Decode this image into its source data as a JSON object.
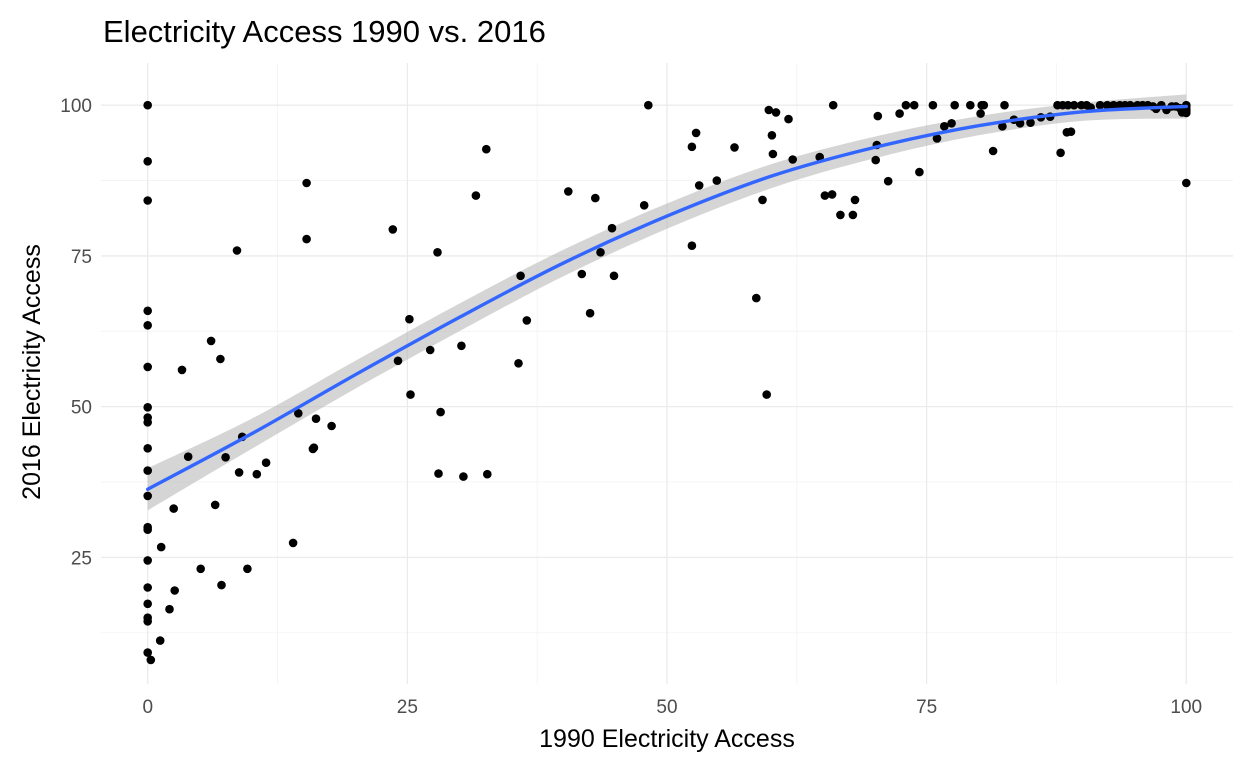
{
  "chart_data": {
    "type": "scatter",
    "title": "Electricity Access 1990 vs. 2016",
    "xlabel": "1990 Electricity Access",
    "ylabel": "2016 Electricity Access",
    "xlim": [
      -4.5,
      104.5
    ],
    "ylim": [
      4,
      107
    ],
    "x_ticks": [
      0,
      25,
      50,
      75,
      100
    ],
    "y_ticks": [
      25,
      50,
      75,
      100
    ],
    "grid": true,
    "legend": "none",
    "colors": {
      "points": "#000000",
      "trend": "#3366ff",
      "band": "#b3b3b3"
    },
    "points": [
      [
        0,
        100
      ],
      [
        0,
        90.7
      ],
      [
        0,
        84.2
      ],
      [
        0,
        65.9
      ],
      [
        0,
        63.5
      ],
      [
        0,
        56.6
      ],
      [
        0,
        49.9
      ],
      [
        0,
        48.2
      ],
      [
        0,
        47.4
      ],
      [
        0,
        43.1
      ],
      [
        0,
        39.4
      ],
      [
        0,
        35.2
      ],
      [
        0,
        30
      ],
      [
        0,
        29.6
      ],
      [
        0,
        24.5
      ],
      [
        0,
        20
      ],
      [
        0,
        17.3
      ],
      [
        0,
        15
      ],
      [
        0,
        14.4
      ],
      [
        0,
        9.2
      ],
      [
        0.3,
        8
      ],
      [
        1.2,
        11.2
      ],
      [
        1.3,
        26.7
      ],
      [
        2.1,
        16.4
      ],
      [
        2.5,
        33.1
      ],
      [
        2.6,
        19.5
      ],
      [
        3.3,
        56.1
      ],
      [
        3.9,
        41.7
      ],
      [
        5.1,
        23.1
      ],
      [
        6.1,
        60.9
      ],
      [
        6.5,
        33.7
      ],
      [
        7,
        57.9
      ],
      [
        7.1,
        20.4
      ],
      [
        7.5,
        41.6
      ],
      [
        8.6,
        75.9
      ],
      [
        8.8,
        39.1
      ],
      [
        9.1,
        45
      ],
      [
        9.6,
        23.1
      ],
      [
        10.5,
        38.8
      ],
      [
        11.4,
        40.7
      ],
      [
        14,
        27.4
      ],
      [
        14.5,
        48.9
      ],
      [
        15.3,
        87.1
      ],
      [
        15.3,
        77.8
      ],
      [
        15.9,
        43
      ],
      [
        16,
        43.2
      ],
      [
        16.2,
        48
      ],
      [
        17.7,
        46.8
      ],
      [
        23.6,
        79.4
      ],
      [
        24.1,
        57.6
      ],
      [
        25.2,
        64.5
      ],
      [
        25.3,
        52
      ],
      [
        27.2,
        59.4
      ],
      [
        27.9,
        75.6
      ],
      [
        28,
        38.9
      ],
      [
        28.2,
        49.1
      ],
      [
        30.2,
        60.1
      ],
      [
        30.4,
        38.4
      ],
      [
        31.6,
        85
      ],
      [
        32.6,
        92.7
      ],
      [
        32.7,
        38.8
      ],
      [
        35.7,
        57.2
      ],
      [
        35.9,
        71.7
      ],
      [
        36.5,
        64.3
      ],
      [
        40.5,
        85.7
      ],
      [
        41.8,
        72
      ],
      [
        42.6,
        65.5
      ],
      [
        43.1,
        84.6
      ],
      [
        43.6,
        75.6
      ],
      [
        44.7,
        79.6
      ],
      [
        44.9,
        71.7
      ],
      [
        47.8,
        83.4
      ],
      [
        48.2,
        100
      ],
      [
        52.4,
        93.1
      ],
      [
        52.4,
        76.7
      ],
      [
        52.8,
        95.4
      ],
      [
        53.1,
        86.7
      ],
      [
        54.8,
        87.5
      ],
      [
        56.5,
        93
      ],
      [
        58.6,
        68
      ],
      [
        59.2,
        84.3
      ],
      [
        59.6,
        52
      ],
      [
        59.8,
        99.2
      ],
      [
        60.1,
        95
      ],
      [
        60.2,
        91.9
      ],
      [
        60.5,
        98.8
      ],
      [
        61.7,
        97.7
      ],
      [
        62.1,
        91
      ],
      [
        64.7,
        91.4
      ],
      [
        65.2,
        85
      ],
      [
        65.9,
        85.2
      ],
      [
        66,
        100
      ],
      [
        66.7,
        81.8
      ],
      [
        67.9,
        81.8
      ],
      [
        68.1,
        84.3
      ],
      [
        70.1,
        90.9
      ],
      [
        70.2,
        93.4
      ],
      [
        70.3,
        98.2
      ],
      [
        71.3,
        87.4
      ],
      [
        72.4,
        98.6
      ],
      [
        73,
        100
      ],
      [
        73.8,
        100
      ],
      [
        74.3,
        88.9
      ],
      [
        75.6,
        100
      ],
      [
        76,
        94.5
      ],
      [
        76.7,
        96.5
      ],
      [
        77.4,
        97
      ],
      [
        77.7,
        100
      ],
      [
        79.2,
        100
      ],
      [
        80.2,
        98.6
      ],
      [
        80.3,
        100
      ],
      [
        80.5,
        100
      ],
      [
        81.4,
        92.4
      ],
      [
        82.3,
        96.5
      ],
      [
        82.5,
        100
      ],
      [
        83.4,
        97.6
      ],
      [
        84,
        97
      ],
      [
        85,
        97.1
      ],
      [
        86,
        98
      ],
      [
        86.9,
        98.1
      ],
      [
        87.6,
        100
      ],
      [
        87.9,
        92.1
      ],
      [
        88.1,
        100
      ],
      [
        88.5,
        95.5
      ],
      [
        88.6,
        100
      ],
      [
        88.9,
        95.6
      ],
      [
        89.2,
        100
      ],
      [
        89.9,
        100
      ],
      [
        90.4,
        100
      ],
      [
        90.8,
        99.6
      ],
      [
        91.7,
        100
      ],
      [
        92.4,
        100
      ],
      [
        93,
        100
      ],
      [
        93.6,
        100
      ],
      [
        94.1,
        100
      ],
      [
        94.6,
        100
      ],
      [
        95.3,
        100
      ],
      [
        95.8,
        100
      ],
      [
        96.3,
        100
      ],
      [
        96.8,
        99.8
      ],
      [
        97.1,
        99.4
      ],
      [
        97.6,
        100
      ],
      [
        98.1,
        99.2
      ],
      [
        98.6,
        99.8
      ],
      [
        99,
        99.8
      ],
      [
        99.4,
        99.5
      ],
      [
        99.6,
        98.8
      ],
      [
        99.8,
        98.9
      ],
      [
        100,
        100
      ],
      [
        100,
        99.8
      ],
      [
        100,
        99.3
      ],
      [
        100,
        99
      ],
      [
        100,
        98.7
      ],
      [
        100,
        87.1
      ]
    ],
    "trend_line": {
      "x": [
        0,
        10,
        20,
        30,
        40,
        50,
        60,
        70,
        80,
        90,
        100
      ],
      "y": [
        36.3,
        45.5,
        55.3,
        64.8,
        73.8,
        81.6,
        88.2,
        93,
        96.6,
        98.9,
        99.8
      ]
    },
    "confidence_band": {
      "x": [
        0,
        10,
        20,
        30,
        40,
        50,
        60,
        70,
        80,
        90,
        100
      ],
      "lower": [
        32.8,
        43,
        53,
        62.5,
        71.6,
        79.5,
        86.2,
        91.2,
        95,
        97.4,
        97.8
      ],
      "upper": [
        39.8,
        48,
        57.6,
        67.1,
        76,
        83.7,
        90.2,
        94.8,
        98.2,
        100.4,
        101.8
      ]
    }
  }
}
